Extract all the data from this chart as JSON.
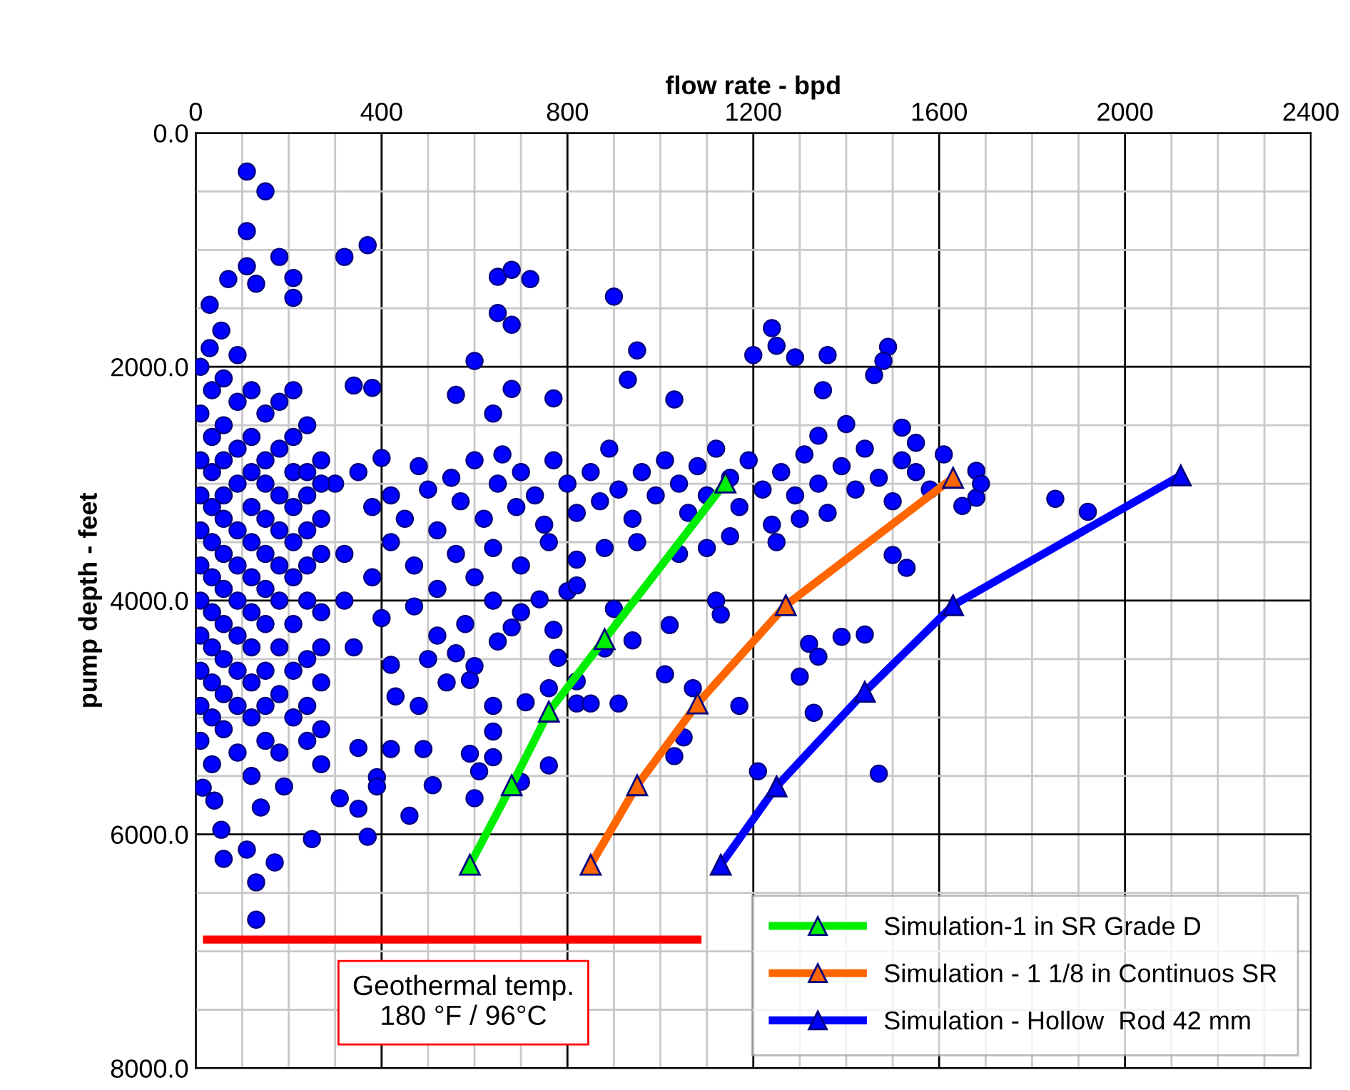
{
  "chart_data": {
    "type": "scatter",
    "xlabel": "flow rate - bpd",
    "ylabel": "pump depth - feet",
    "xlim": [
      0,
      2400
    ],
    "xticks": [
      0,
      {
        "value": 100,
        "label": null
      },
      {
        "value": 200,
        "label": null
      },
      {
        "value": 300,
        "label": null
      },
      400,
      {
        "value": 500,
        "label": null
      },
      {
        "value": 600,
        "label": null
      },
      {
        "value": 700,
        "label": null
      },
      800,
      {
        "value": 900,
        "label": null
      },
      {
        "value": 1000,
        "label": null
      },
      {
        "value": 1100,
        "label": null
      },
      1200,
      {
        "value": 1300,
        "label": null
      },
      {
        "value": 1400,
        "label": null
      },
      {
        "value": 1500,
        "label": null
      },
      1600,
      {
        "value": 1700,
        "label": null
      },
      {
        "value": 1800,
        "label": null
      },
      {
        "value": 1900,
        "label": null
      },
      2000,
      {
        "value": 2100,
        "label": null
      },
      {
        "value": 2200,
        "label": null
      },
      {
        "value": 2300,
        "label": null
      },
      2400
    ],
    "ylim": [
      8000,
      0
    ],
    "yticks": [
      {
        "value": 0,
        "label": "0.0"
      },
      {
        "value": 500,
        "label": null
      },
      {
        "value": 1000,
        "label": null
      },
      {
        "value": 1500,
        "label": null
      },
      {
        "value": 2000,
        "label": "2000.0"
      },
      {
        "value": 2500,
        "label": null
      },
      {
        "value": 3000,
        "label": null
      },
      {
        "value": 3500,
        "label": null
      },
      {
        "value": 4000,
        "label": "4000.0"
      },
      {
        "value": 4500,
        "label": null
      },
      {
        "value": 5000,
        "label": null
      },
      {
        "value": 5500,
        "label": null
      },
      {
        "value": 6000,
        "label": "6000.0"
      },
      {
        "value": 6500,
        "label": null
      },
      {
        "value": 7000,
        "label": null
      },
      {
        "value": 7500,
        "label": null
      },
      {
        "value": 8000,
        "label": "8000.0"
      }
    ],
    "grid": true,
    "legend": "bottom right",
    "marker": "circle",
    "ref_lines": [
      {
        "axis": "y",
        "value": 6900,
        "label": "Geothermal temp.\n180 °F / 96°C",
        "color": "#ff0000"
      }
    ],
    "series": [
      {
        "color": "#0000ff",
        "x": [
          110,
          150,
          110,
          180,
          110,
          70,
          130,
          210,
          210,
          320,
          370,
          30,
          30,
          55,
          650,
          680,
          720,
          650,
          680,
          600,
          640,
          680,
          770,
          560,
          340,
          380,
          900,
          950,
          930,
          1030,
          1240,
          1250,
          1290,
          1360,
          1490,
          1480,
          1200,
          1460,
          1400,
          1520,
          1550,
          1680,
          1850,
          1920,
          1650,
          1350,
          1340,
          1680,
          1690,
          1500,
          1530,
          1390,
          1320,
          1340,
          1440,
          1300,
          1330,
          1170,
          1210,
          1470,
          640,
          640,
          590,
          640,
          610,
          600,
          760,
          700,
          460,
          370,
          250,
          170,
          60,
          110,
          130,
          130,
          40,
          15,
          510,
          310,
          350,
          820,
          910,
          850,
          820,
          880,
          940,
          1020,
          1010,
          1070,
          1050,
          1030,
          800,
          820,
          740,
          770,
          780,
          760,
          710,
          680,
          650,
          600,
          590,
          540,
          430,
          480,
          490,
          420,
          350,
          390,
          390,
          190,
          140,
          55,
          1120,
          1130,
          900,
          300,
          350,
          380,
          400,
          420,
          450,
          480,
          500,
          520,
          550,
          570,
          600,
          620,
          650,
          660,
          690,
          700,
          730,
          750,
          770,
          800,
          820,
          850,
          870,
          890,
          910,
          940,
          960,
          990,
          1010,
          1040,
          1060,
          1080,
          1100,
          1120,
          1150,
          1170,
          1190,
          1220,
          1240,
          1260,
          1290,
          1310,
          1340,
          1360,
          1390,
          1420,
          1440,
          1470,
          1500,
          1520,
          1550,
          1580,
          1610,
          320,
          380,
          420,
          470,
          520,
          560,
          600,
          640,
          700,
          760,
          820,
          880,
          950,
          1040,
          1100,
          1150,
          1250,
          1300,
          320,
          400,
          470,
          520,
          580,
          640,
          700,
          340,
          420,
          500,
          560,
          10,
          10,
          10,
          10,
          10,
          10,
          10,
          10,
          10,
          10,
          10,
          35,
          35,
          35,
          35,
          35,
          35,
          35,
          35,
          35,
          35,
          35,
          60,
          60,
          60,
          60,
          60,
          60,
          60,
          60,
          60,
          60,
          60,
          90,
          90,
          90,
          90,
          90,
          90,
          90,
          90,
          90,
          90,
          90,
          120,
          120,
          120,
          120,
          120,
          120,
          120,
          120,
          120,
          120,
          120,
          150,
          150,
          150,
          150,
          150,
          150,
          150,
          150,
          150,
          150,
          180,
          180,
          180,
          180,
          180,
          180,
          180,
          180,
          180,
          210,
          210,
          210,
          210,
          210,
          210,
          210,
          210,
          210,
          240,
          240,
          240,
          240,
          240,
          240,
          240,
          240,
          240,
          270,
          270,
          270,
          270,
          270,
          270,
          270,
          270,
          270
        ],
        "values": [
          330,
          500,
          840,
          1060,
          1140,
          1250,
          1290,
          1240,
          1410,
          1060,
          960,
          1470,
          1840,
          1690,
          1230,
          1170,
          1250,
          1540,
          1640,
          1950,
          2400,
          2190,
          2270,
          2240,
          2160,
          2180,
          1400,
          1860,
          2110,
          2280,
          1670,
          1820,
          1920,
          1900,
          1830,
          1950,
          1900,
          2070,
          2490,
          2520,
          2650,
          3120,
          3130,
          3240,
          3190,
          2200,
          2590,
          2890,
          3000,
          3610,
          3720,
          4310,
          4370,
          4480,
          4290,
          4650,
          4960,
          4900,
          5460,
          5480,
          4900,
          5120,
          5310,
          5340,
          5460,
          5690,
          5410,
          5550,
          5840,
          6020,
          6040,
          6240,
          6210,
          6130,
          6410,
          6730,
          5710,
          5600,
          5580,
          5690,
          5780,
          4880,
          4880,
          4880,
          4690,
          4410,
          4340,
          4210,
          4630,
          4750,
          5170,
          5330,
          3920,
          3870,
          3990,
          4250,
          4490,
          4750,
          4870,
          4230,
          4350,
          4560,
          4680,
          4700,
          4820,
          4900,
          5270,
          5270,
          5260,
          5510,
          5590,
          5590,
          5770,
          5960,
          4000,
          4120,
          4070,
          3000,
          2900,
          3200,
          2780,
          3100,
          3300,
          2850,
          3050,
          3400,
          2950,
          3150,
          2800,
          3300,
          3000,
          2750,
          3200,
          2900,
          3100,
          3350,
          2800,
          3000,
          3250,
          2900,
          3150,
          2700,
          3050,
          3300,
          2900,
          3100,
          2800,
          3000,
          3250,
          2850,
          3100,
          2700,
          2950,
          3200,
          2800,
          3050,
          3350,
          2900,
          3100,
          2750,
          3000,
          3250,
          2850,
          3050,
          2700,
          2950,
          3150,
          2800,
          2900,
          3050,
          2750,
          3600,
          3800,
          3500,
          3700,
          3900,
          3600,
          3800,
          3550,
          3700,
          3500,
          3650,
          3550,
          3500,
          3600,
          3550,
          3450,
          3500,
          3300,
          4000,
          4150,
          4050,
          4300,
          4200,
          4000,
          4100,
          4400,
          4550,
          4500,
          4450,
          2000,
          2400,
          2800,
          3100,
          3400,
          3700,
          4000,
          4300,
          4600,
          4900,
          5200,
          2200,
          2600,
          2900,
          3200,
          3500,
          3800,
          4100,
          4400,
          4700,
          5000,
          5400,
          2100,
          2500,
          2800,
          3100,
          3300,
          3600,
          3900,
          4200,
          4500,
          4800,
          5100,
          1900,
          2300,
          2700,
          3000,
          3400,
          3700,
          4000,
          4300,
          4600,
          4900,
          5300,
          2200,
          2600,
          2900,
          3200,
          3500,
          3800,
          4100,
          4400,
          4700,
          5000,
          5500,
          2400,
          2800,
          3000,
          3300,
          3600,
          3900,
          4200,
          4600,
          4900,
          5200,
          2300,
          2700,
          3100,
          3400,
          3700,
          4000,
          4400,
          4800,
          5300,
          2200,
          2600,
          2900,
          3200,
          3500,
          3800,
          4200,
          4600,
          5000,
          2500,
          2900,
          3100,
          3400,
          3700,
          4000,
          4500,
          4900,
          5200,
          2800,
          3000,
          3300,
          3600,
          4100,
          4400,
          4700,
          5100,
          5400
        ]
      },
      {
        "type": "line",
        "name": "Simulation-1 in SR Grade D",
        "color": "#00ee00",
        "marker": "triangle",
        "x": [
          590,
          680,
          760,
          880,
          1140
        ],
        "values": [
          6260,
          5580,
          4950,
          4330,
          2990
        ]
      },
      {
        "type": "line",
        "name": "Simulation - 1 1/8 in Continuos SR",
        "color": "#ff6600",
        "marker": "triangle",
        "x": [
          850,
          950,
          1080,
          1270,
          1630
        ],
        "values": [
          6260,
          5580,
          4880,
          4040,
          2950
        ]
      },
      {
        "type": "line",
        "name": "Simulation - Hollow  Rod 42 mm",
        "color": "#0000ff",
        "marker": "triangle",
        "x": [
          1130,
          1250,
          1440,
          1630,
          2120
        ],
        "values": [
          6260,
          5590,
          4780,
          4040,
          2930
        ]
      }
    ]
  }
}
